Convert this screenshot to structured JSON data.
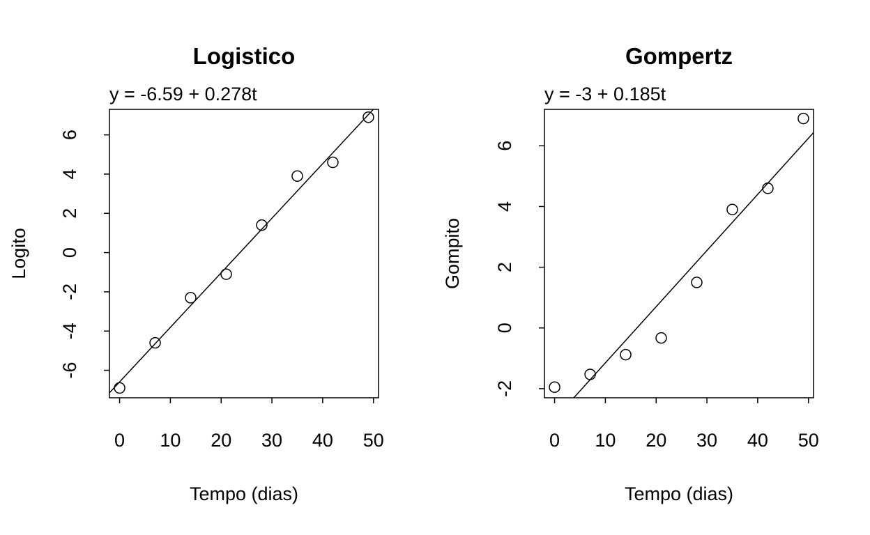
{
  "chart_data": [
    {
      "type": "scatter",
      "title": "Logistico",
      "subtitle": "y = -6.59 + 0.278t",
      "xlabel": "Tempo (dias)",
      "ylabel": "Logito",
      "xlim": [
        -2,
        51
      ],
      "ylim": [
        -7.4,
        7.3
      ],
      "xticks": [
        0,
        10,
        20,
        30,
        40,
        50
      ],
      "yticks": [
        -6,
        -4,
        -2,
        0,
        2,
        4,
        6
      ],
      "x": [
        0,
        7,
        14,
        21,
        28,
        35,
        42,
        49
      ],
      "y": [
        -6.9,
        -4.6,
        -2.3,
        -1.1,
        1.4,
        3.9,
        4.6,
        6.9
      ],
      "fit": {
        "intercept": -6.59,
        "slope": 0.278
      },
      "grid": false
    },
    {
      "type": "scatter",
      "title": "Gompertz",
      "subtitle": "y = -3 + 0.185t",
      "xlabel": "Tempo (dias)",
      "ylabel": "Gompito",
      "xlim": [
        -2,
        51
      ],
      "ylim": [
        -2.3,
        7.2
      ],
      "xticks": [
        0,
        10,
        20,
        30,
        40,
        50
      ],
      "yticks": [
        -2,
        0,
        2,
        4,
        6
      ],
      "x": [
        0,
        7,
        14,
        21,
        28,
        35,
        42,
        49
      ],
      "y": [
        -1.95,
        -1.53,
        -0.88,
        -0.33,
        1.5,
        3.9,
        4.6,
        6.9
      ],
      "fit": {
        "intercept": -3,
        "slope": 0.185
      },
      "grid": false
    }
  ]
}
